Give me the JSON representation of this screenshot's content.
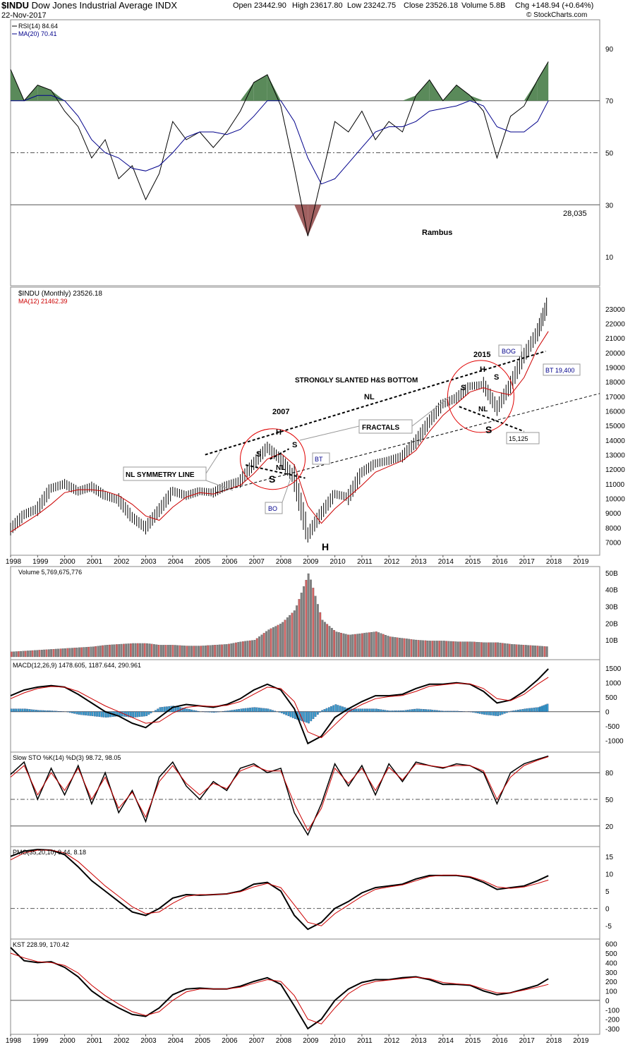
{
  "header": {
    "symbol": "$INDU",
    "name": "Dow Jones Industrial Average",
    "exchange": "INDX",
    "date": "22-Nov-2017",
    "open": "Open 23442.90",
    "high": "High 23617.80",
    "low": "Low 23242.75",
    "close": "Close 23526.18",
    "volume": "Volume 5.8B",
    "chg": "Chg +148.94 (+0.64%)",
    "watermark": "© StockCharts.com"
  },
  "colors": {
    "price": "#000000",
    "ma": "#cc0000",
    "rsi_ma": "#00008b",
    "rsi_fill_hi": "#5a8a5a",
    "rsi_fill_lo": "#a06060",
    "vol_up": "#808080",
    "vol_down": "#d06060",
    "macd_hist": "#3399cc",
    "annot_circle": "#e00000"
  },
  "chart_data": [
    {
      "type": "line",
      "panel": "RSI",
      "legend": [
        "RSI(14) 84.64",
        "MA(20) 70.41"
      ],
      "ylim": [
        0,
        100
      ],
      "yticks": [
        10,
        30,
        50,
        70,
        90
      ],
      "reference_lines": [
        30,
        50,
        70
      ],
      "annotations": [
        "28,035",
        "Rambus"
      ],
      "x": [
        1998.0,
        1998.5,
        1999.0,
        1999.5,
        2000.0,
        2000.5,
        2001.0,
        2001.5,
        2002.0,
        2002.5,
        2003.0,
        2003.5,
        2004.0,
        2004.5,
        2005.0,
        2005.5,
        2006.0,
        2006.5,
        2007.0,
        2007.5,
        2008.0,
        2008.5,
        2009.0,
        2009.5,
        2010.0,
        2010.5,
        2011.0,
        2011.5,
        2012.0,
        2012.5,
        2013.0,
        2013.5,
        2014.0,
        2014.5,
        2015.0,
        2015.5,
        2016.0,
        2016.5,
        2017.0,
        2017.5,
        2017.9
      ],
      "series": [
        {
          "name": "RSI(14) 84.64",
          "values": [
            82,
            70,
            76,
            74,
            66,
            60,
            48,
            55,
            40,
            45,
            32,
            42,
            62,
            55,
            58,
            52,
            58,
            66,
            77,
            80,
            68,
            44,
            18,
            40,
            62,
            58,
            66,
            55,
            62,
            58,
            72,
            78,
            70,
            76,
            72,
            66,
            48,
            64,
            68,
            78,
            85
          ]
        },
        {
          "name": "MA(20) 70.41",
          "values": [
            70,
            70,
            72,
            72,
            70,
            64,
            55,
            50,
            48,
            44,
            43,
            45,
            50,
            56,
            58,
            58,
            57,
            59,
            64,
            70,
            70,
            62,
            48,
            38,
            40,
            46,
            52,
            58,
            60,
            60,
            62,
            66,
            67,
            68,
            70,
            68,
            60,
            58,
            58,
            62,
            70
          ]
        }
      ]
    },
    {
      "type": "line",
      "panel": "Price",
      "legend": [
        "$INDU (Monthly) 23526.18",
        "MA(12) 21462.39"
      ],
      "ylim": [
        6300,
        24300
      ],
      "yticks": [
        7000,
        8000,
        9000,
        10000,
        11000,
        12000,
        13000,
        14000,
        15000,
        16000,
        17000,
        18000,
        19000,
        20000,
        21000,
        22000,
        23000
      ],
      "xticks": [
        1998,
        1999,
        2000,
        2001,
        2002,
        2003,
        2004,
        2005,
        2006,
        2007,
        2008,
        2009,
        2010,
        2011,
        2012,
        2013,
        2014,
        2015,
        2016,
        2017,
        2018,
        2019
      ],
      "x": [
        1998.0,
        1998.5,
        1999.0,
        1999.5,
        2000.0,
        2000.5,
        2001.0,
        2001.5,
        2002.0,
        2002.5,
        2003.0,
        2003.5,
        2004.0,
        2004.5,
        2005.0,
        2005.5,
        2006.0,
        2006.5,
        2007.0,
        2007.5,
        2008.0,
        2008.5,
        2009.0,
        2009.5,
        2010.0,
        2010.5,
        2011.0,
        2011.5,
        2012.0,
        2012.5,
        2013.0,
        2013.5,
        2014.0,
        2014.5,
        2015.0,
        2015.5,
        2016.0,
        2016.5,
        2017.0,
        2017.5,
        2017.9
      ],
      "series": [
        {
          "name": "$INDU (Monthly) 23526.18",
          "values": [
            7900,
            8900,
            9300,
            10700,
            11000,
            10500,
            10800,
            10200,
            9900,
            8700,
            8000,
            9200,
            10500,
            10200,
            10500,
            10400,
            10900,
            11200,
            12400,
            13500,
            12700,
            11400,
            7500,
            9000,
            10300,
            10100,
            11800,
            12400,
            12600,
            12900,
            13900,
            15300,
            16500,
            16900,
            17700,
            17800,
            16200,
            17800,
            19800,
            21400,
            23500
          ]
        },
        {
          "name": "MA(12) 21462.39",
          "values": [
            7700,
            8300,
            8900,
            9600,
            10400,
            10600,
            10600,
            10500,
            10200,
            9600,
            8800,
            8500,
            9400,
            10100,
            10400,
            10300,
            10600,
            10900,
            11700,
            12700,
            13100,
            12300,
            9500,
            8300,
            9300,
            10100,
            10900,
            11800,
            12200,
            12600,
            13300,
            14600,
            15700,
            16500,
            17300,
            17600,
            17300,
            17100,
            18300,
            20300,
            21460
          ]
        }
      ],
      "annotations": [
        "2007",
        "2015",
        "STRONGLY SLANTED H&S BOTTOM",
        "NL",
        "FRACTALS",
        "NL SYMMETRY LINE",
        "BT",
        "BO",
        "BOG",
        "BT 19,400",
        "15,125",
        "H",
        "S",
        "NL"
      ]
    },
    {
      "type": "bar",
      "panel": "Volume",
      "legend": [
        "Volume 5,769,675,776"
      ],
      "ylim": [
        0,
        52
      ],
      "yticks": [
        10,
        20,
        30,
        40,
        50
      ],
      "ytick_labels": [
        "10B",
        "20B",
        "30B",
        "40B",
        "50B"
      ],
      "x": [
        1998.0,
        1998.5,
        1999.0,
        1999.5,
        2000.0,
        2000.5,
        2001.0,
        2001.5,
        2002.0,
        2002.5,
        2003.0,
        2003.5,
        2004.0,
        2004.5,
        2005.0,
        2005.5,
        2006.0,
        2006.5,
        2007.0,
        2007.5,
        2008.0,
        2008.5,
        2009.0,
        2009.5,
        2010.0,
        2010.5,
        2011.0,
        2011.5,
        2012.0,
        2012.5,
        2013.0,
        2013.5,
        2014.0,
        2014.5,
        2015.0,
        2015.5,
        2016.0,
        2016.5,
        2017.0,
        2017.5,
        2017.9
      ],
      "values": [
        3,
        3.5,
        4,
        4.5,
        5,
        5.5,
        6,
        7,
        7.5,
        8,
        8,
        7,
        7,
        6.5,
        6.5,
        7,
        7.5,
        9,
        10,
        16,
        20,
        28,
        50,
        22,
        15,
        13,
        14,
        15,
        12,
        11,
        10,
        9.5,
        9.5,
        9,
        9,
        8.5,
        8.5,
        7.5,
        7,
        6.5,
        6
      ]
    },
    {
      "type": "line",
      "panel": "MACD",
      "legend": [
        "MACD(12,26,9) 1478.605, 1187.644, 290.961"
      ],
      "ylim": [
        -1300,
        1700
      ],
      "yticks": [
        -1000,
        -500,
        0,
        500,
        1000,
        1500
      ],
      "x": [
        1998.0,
        1998.5,
        1999.0,
        1999.5,
        2000.0,
        2000.5,
        2001.0,
        2001.5,
        2002.0,
        2002.5,
        2003.0,
        2003.5,
        2004.0,
        2004.5,
        2005.0,
        2005.5,
        2006.0,
        2006.5,
        2007.0,
        2007.5,
        2008.0,
        2008.5,
        2009.0,
        2009.5,
        2010.0,
        2010.5,
        2011.0,
        2011.5,
        2012.0,
        2012.5,
        2013.0,
        2013.5,
        2014.0,
        2014.5,
        2015.0,
        2015.5,
        2016.0,
        2016.5,
        2017.0,
        2017.5,
        2017.9
      ],
      "series": [
        {
          "name": "MACD",
          "values": [
            550,
            750,
            850,
            900,
            850,
            600,
            300,
            0,
            -150,
            -400,
            -550,
            -200,
            150,
            250,
            200,
            150,
            250,
            450,
            750,
            950,
            750,
            100,
            -1100,
            -850,
            -200,
            100,
            350,
            550,
            550,
            600,
            800,
            950,
            950,
            1000,
            950,
            700,
            300,
            400,
            700,
            1100,
            1480
          ]
        },
        {
          "name": "Signal",
          "values": [
            450,
            650,
            800,
            870,
            850,
            700,
            450,
            200,
            0,
            -200,
            -400,
            -350,
            -50,
            150,
            200,
            180,
            220,
            350,
            600,
            850,
            800,
            350,
            -700,
            -900,
            -450,
            0,
            250,
            450,
            520,
            560,
            700,
            880,
            930,
            980,
            960,
            800,
            450,
            380,
            600,
            950,
            1190
          ]
        }
      ],
      "histogram": [
        100,
        100,
        50,
        30,
        0,
        -100,
        -150,
        -200,
        -150,
        -200,
        -150,
        150,
        200,
        100,
        0,
        -30,
        30,
        100,
        150,
        100,
        -50,
        -250,
        -400,
        50,
        250,
        100,
        100,
        100,
        30,
        40,
        100,
        70,
        20,
        20,
        -10,
        -100,
        -150,
        20,
        100,
        150,
        291
      ]
    },
    {
      "type": "line",
      "panel": "Slow STO",
      "legend": [
        "Slow STO %K(14) %D(3) 98.72, 98.05"
      ],
      "ylim": [
        0,
        100
      ],
      "yticks": [
        20,
        50,
        80
      ],
      "reference_lines": [
        20,
        50,
        80
      ],
      "x": [
        1998.0,
        1998.5,
        1999.0,
        1999.5,
        2000.0,
        2000.5,
        2001.0,
        2001.5,
        2002.0,
        2002.5,
        2003.0,
        2003.5,
        2004.0,
        2004.5,
        2005.0,
        2005.5,
        2006.0,
        2006.5,
        2007.0,
        2007.5,
        2008.0,
        2008.5,
        2009.0,
        2009.5,
        2010.0,
        2010.5,
        2011.0,
        2011.5,
        2012.0,
        2012.5,
        2013.0,
        2013.5,
        2014.0,
        2014.5,
        2015.0,
        2015.5,
        2016.0,
        2016.5,
        2017.0,
        2017.5,
        2017.9
      ],
      "series": [
        {
          "name": "%K",
          "values": [
            78,
            92,
            50,
            85,
            55,
            88,
            45,
            80,
            35,
            60,
            25,
            75,
            92,
            65,
            50,
            70,
            60,
            85,
            90,
            80,
            85,
            35,
            10,
            45,
            90,
            65,
            88,
            55,
            90,
            70,
            92,
            88,
            85,
            90,
            88,
            80,
            45,
            80,
            90,
            95,
            98.7
          ]
        },
        {
          "name": "%D",
          "values": [
            75,
            88,
            55,
            80,
            60,
            85,
            50,
            75,
            40,
            58,
            30,
            70,
            88,
            68,
            55,
            68,
            62,
            82,
            88,
            82,
            82,
            45,
            15,
            40,
            85,
            68,
            85,
            60,
            86,
            72,
            90,
            88,
            86,
            88,
            88,
            82,
            50,
            75,
            88,
            94,
            98.05
          ]
        }
      ]
    },
    {
      "type": "line",
      "panel": "PMO",
      "legend": [
        "PMO(35,20,10) 9.44, 8.18"
      ],
      "ylim": [
        -8,
        17
      ],
      "yticks": [
        -5,
        0,
        5,
        10,
        15
      ],
      "reference_lines": [
        0
      ],
      "x": [
        1998.0,
        1998.5,
        1999.0,
        1999.5,
        2000.0,
        2000.5,
        2001.0,
        2001.5,
        2002.0,
        2002.5,
        2003.0,
        2003.5,
        2004.0,
        2004.5,
        2005.0,
        2005.5,
        2006.0,
        2006.5,
        2007.0,
        2007.5,
        2008.0,
        2008.5,
        2009.0,
        2009.5,
        2010.0,
        2010.5,
        2011.0,
        2011.5,
        2012.0,
        2012.5,
        2013.0,
        2013.5,
        2014.0,
        2014.5,
        2015.0,
        2015.5,
        2016.0,
        2016.5,
        2017.0,
        2017.5,
        2017.9
      ],
      "series": [
        {
          "name": "PMO",
          "values": [
            15,
            16.5,
            17,
            16.8,
            15.5,
            12,
            8,
            5,
            2,
            -1,
            -2,
            0,
            3,
            4,
            3.8,
            4,
            4.2,
            5,
            7,
            7.5,
            5,
            -2,
            -6,
            -4,
            0,
            2,
            4.5,
            6,
            6.5,
            7,
            8.5,
            9.5,
            9.5,
            9.5,
            9,
            7.5,
            5.5,
            6,
            6.5,
            8,
            9.44
          ]
        },
        {
          "name": "Signal",
          "values": [
            14,
            16,
            16.8,
            16.8,
            16,
            13.5,
            10,
            6.5,
            3.5,
            0.5,
            -1.5,
            -1,
            1.5,
            3.5,
            4,
            4,
            4.2,
            4.8,
            6.2,
            7.2,
            6,
            1,
            -4,
            -5,
            -1.5,
            1,
            3.5,
            5.5,
            6.2,
            6.8,
            8,
            9.2,
            9.6,
            9.6,
            9.2,
            8,
            6.2,
            5.8,
            6.2,
            7.2,
            8.18
          ]
        }
      ]
    },
    {
      "type": "line",
      "panel": "KST",
      "legend": [
        "KST 228.99, 170.42"
      ],
      "ylim": [
        -330,
        620
      ],
      "yticks": [
        -300,
        -200,
        -100,
        0,
        100,
        200,
        300,
        400,
        500,
        600
      ],
      "reference_lines": [
        0
      ],
      "x": [
        1998.0,
        1998.5,
        1999.0,
        1999.5,
        2000.0,
        2000.5,
        2001.0,
        2001.5,
        2002.0,
        2002.5,
        2003.0,
        2003.5,
        2004.0,
        2004.5,
        2005.0,
        2005.5,
        2006.0,
        2006.5,
        2007.0,
        2007.5,
        2008.0,
        2008.5,
        2009.0,
        2009.5,
        2010.0,
        2010.5,
        2011.0,
        2011.5,
        2012.0,
        2012.5,
        2013.0,
        2013.5,
        2014.0,
        2014.5,
        2015.0,
        2015.5,
        2016.0,
        2016.5,
        2017.0,
        2017.5,
        2017.9
      ],
      "series": [
        {
          "name": "KST",
          "values": [
            560,
            420,
            400,
            410,
            350,
            250,
            100,
            0,
            -80,
            -150,
            -170,
            -80,
            60,
            120,
            130,
            120,
            120,
            150,
            200,
            240,
            170,
            -60,
            -300,
            -200,
            0,
            120,
            190,
            220,
            220,
            240,
            250,
            220,
            170,
            170,
            160,
            100,
            60,
            80,
            120,
            160,
            229
          ]
        },
        {
          "name": "Signal",
          "values": [
            500,
            450,
            410,
            400,
            370,
            290,
            160,
            50,
            -40,
            -120,
            -160,
            -120,
            0,
            90,
            120,
            120,
            120,
            140,
            180,
            220,
            200,
            50,
            -200,
            -250,
            -80,
            70,
            160,
            200,
            215,
            230,
            245,
            230,
            190,
            175,
            165,
            120,
            80,
            80,
            110,
            140,
            170
          ]
        }
      ]
    }
  ]
}
